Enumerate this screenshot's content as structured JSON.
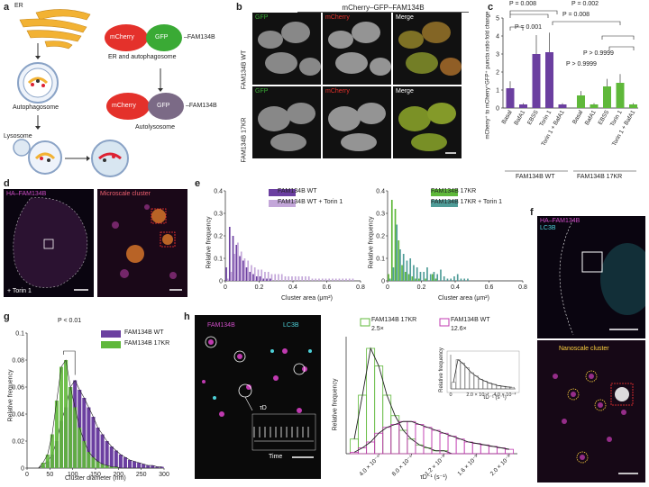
{
  "panels": {
    "a": {
      "label": "a",
      "er": "ER",
      "mcherry": "mCherry",
      "gfp": "GFP",
      "fam": "–FAM134B",
      "er_auto": "ER and autophagosome",
      "autophagosome": "Autophagosome",
      "lysosome": "Lysosome",
      "autolysosome": "Autolysosome",
      "mcherry2": "mCherry",
      "gfp2": "GFP",
      "fam2": "–FAM134B"
    },
    "b": {
      "label": "b",
      "title": "mCherry–GFP–FAM134B",
      "row1": "FAM134B WT",
      "row2": "FAM134B 17KR",
      "col1": "GFP",
      "col2": "mCherry",
      "col3": "Merge",
      "col1b": "GFP",
      "col2b": "mCherry",
      "col3b": "Merge"
    },
    "c": {
      "label": "c",
      "ylabel": "mCherry⁺ to mCherry⁺GFP⁺ puncta ratio fold change",
      "p1": "P = 0.008",
      "p2": "P = 0.002",
      "p3": "P = 0.001",
      "p4": "P = 0.008",
      "p5": "P > 0.9999",
      "p6": "P > 0.9999",
      "group1": "FAM134B WT",
      "group2": "FAM134B 17KR"
    },
    "d": {
      "label": "d",
      "ch": "HA–FAM134B",
      "inset": "Microscale cluster",
      "torin": "+ Torin 1"
    },
    "e": {
      "label": "e",
      "ylabel": "Relative frequency",
      "xlabel1": "Cluster area (μm²)",
      "xlabel2": "Cluster area (μm²)",
      "leg1a": "FAM134B WT",
      "leg1b": "FAM134B WT + Torin 1",
      "leg2a": "FAM134B 17KR",
      "leg2b": "FAM134B 17KR + Torin 1"
    },
    "f": {
      "label": "f",
      "ch1": "HA–FAM134B",
      "ch2": "LC3B",
      "inset": "Nanoscale cluster"
    },
    "g": {
      "label": "g",
      "ylabel": "Relative frequency",
      "xlabel": "Cluster diameter (nm)",
      "p": "P < 0.01",
      "leg1": "FAM134B WT",
      "leg2": "FAM134B 17KR"
    },
    "h": {
      "label": "h",
      "ch1": "FAM134B",
      "ch2": "LC3B",
      "tau": "τD",
      "time": "Time",
      "ylabel": "Relative frequency",
      "xlabel": "τD⁻¹ (s⁻¹)",
      "leg1": "FAM134B 17KR",
      "leg1v": "2.5×",
      "leg2": "FAM134B WT",
      "leg2v": "12.6×",
      "inset_ylabel": "Relative frequency",
      "inset_xlabel": "τD⁻¹ (s⁻¹)"
    }
  },
  "chart_data": [
    {
      "type": "bar",
      "panel": "c",
      "categories": [
        "Basal",
        "BafA1",
        "EBSS",
        "Torin 1",
        "Torin 1 + BafA1",
        "Basal",
        "BafA1",
        "EBSS",
        "Torin 1",
        "Torin 1 + BafA1"
      ],
      "values": [
        1.1,
        0.2,
        3.0,
        3.1,
        0.2,
        0.7,
        0.2,
        1.2,
        1.4,
        0.2
      ],
      "ylim": [
        0,
        5
      ],
      "yticks": [
        0,
        1,
        2,
        3,
        4,
        5
      ],
      "colors": [
        "#6b3fa0",
        "#6b3fa0",
        "#6b3fa0",
        "#6b3fa0",
        "#6b3fa0",
        "#5fb83a",
        "#5fb83a",
        "#5fb83a",
        "#5fb83a",
        "#5fb83a"
      ]
    },
    {
      "type": "bar",
      "panel": "e-left",
      "x": [
        0.01,
        0.03,
        0.05,
        0.07,
        0.09,
        0.11,
        0.13,
        0.15,
        0.17,
        0.19,
        0.21,
        0.23,
        0.25,
        0.27,
        0.29,
        0.31,
        0.33,
        0.35,
        0.37,
        0.39,
        0.41,
        0.43,
        0.45,
        0.47,
        0.49,
        0.51,
        0.53,
        0.55,
        0.57,
        0.59,
        0.61,
        0.63,
        0.65,
        0.67,
        0.69,
        0.71,
        0.73,
        0.75
      ],
      "series": [
        {
          "name": "FAM134B WT",
          "values": [
            0.06,
            0.24,
            0.2,
            0.16,
            0.11,
            0.09,
            0.06,
            0.04,
            0.03,
            0.02,
            0.02,
            0.01,
            0.01,
            0.01,
            0,
            0,
            0,
            0,
            0,
            0,
            0,
            0,
            0,
            0,
            0,
            0,
            0,
            0,
            0,
            0,
            0,
            0,
            0,
            0,
            0,
            0,
            0,
            0
          ]
        },
        {
          "name": "FAM134B WT + Torin 1",
          "values": [
            0.01,
            0.04,
            0.12,
            0.17,
            0.13,
            0.1,
            0.09,
            0.07,
            0.06,
            0.05,
            0.05,
            0.04,
            0.04,
            0.03,
            0.03,
            0.03,
            0.03,
            0.02,
            0.02,
            0.02,
            0.02,
            0.02,
            0.02,
            0.02,
            0.02,
            0.01,
            0.01,
            0.01,
            0.01,
            0.01,
            0.01,
            0.01,
            0.01,
            0.01,
            0.01,
            0.01,
            0.01,
            0.01
          ]
        }
      ],
      "xlim": [
        0,
        0.8
      ],
      "ylim": [
        0,
        0.4
      ],
      "xticks": [
        0,
        0.2,
        0.4,
        0.6,
        0.8
      ],
      "yticks": [
        0,
        0.1,
        0.2,
        0.3,
        0.4
      ]
    },
    {
      "type": "bar",
      "panel": "e-right",
      "x": [
        0.01,
        0.03,
        0.05,
        0.07,
        0.09,
        0.11,
        0.13,
        0.15,
        0.17,
        0.19,
        0.21,
        0.23,
        0.25,
        0.27,
        0.29,
        0.31,
        0.33,
        0.35,
        0.37,
        0.39,
        0.41,
        0.43,
        0.45,
        0.47,
        0.49,
        0.51,
        0.53,
        0.55,
        0.57,
        0.59,
        0.61,
        0.63,
        0.65,
        0.67,
        0.69,
        0.71,
        0.73,
        0.75
      ],
      "series": [
        {
          "name": "FAM134B 17KR",
          "values": [
            0.03,
            0.36,
            0.32,
            0.18,
            0.07,
            0.04,
            0.03,
            0.02,
            0.01,
            0.01,
            0,
            0.01,
            0,
            0.03,
            0.01,
            0,
            0,
            0,
            0,
            0,
            0,
            0,
            0,
            0,
            0,
            0,
            0,
            0,
            0,
            0,
            0,
            0,
            0,
            0,
            0,
            0,
            0,
            0
          ]
        },
        {
          "name": "FAM134B 17KR + Torin 1",
          "values": [
            0.01,
            0.06,
            0.25,
            0.14,
            0.12,
            0.09,
            0.1,
            0.07,
            0.06,
            0.04,
            0.04,
            0.06,
            0.03,
            0.04,
            0.03,
            0.05,
            0.02,
            0.01,
            0.01,
            0.02,
            0.03,
            0.01,
            0.01,
            0.01,
            0,
            0,
            0,
            0,
            0,
            0,
            0,
            0,
            0,
            0,
            0,
            0,
            0,
            0
          ]
        }
      ],
      "xlim": [
        0,
        0.8
      ],
      "ylim": [
        0,
        0.4
      ],
      "xticks": [
        0,
        0.2,
        0.4,
        0.6,
        0.8
      ],
      "yticks": [
        0,
        0.1,
        0.2,
        0.3,
        0.4
      ]
    },
    {
      "type": "bar",
      "panel": "g",
      "x": [
        25,
        35,
        45,
        55,
        65,
        75,
        85,
        95,
        105,
        115,
        125,
        135,
        145,
        155,
        165,
        175,
        185,
        195,
        205,
        215,
        225,
        235,
        245,
        255,
        265,
        275,
        285,
        295
      ],
      "series": [
        {
          "name": "FAM134B WT",
          "values": [
            0,
            0.002,
            0.005,
            0.01,
            0.02,
            0.035,
            0.045,
            0.06,
            0.065,
            0.058,
            0.052,
            0.045,
            0.038,
            0.03,
            0.025,
            0.02,
            0.016,
            0.013,
            0.01,
            0.008,
            0.006,
            0.005,
            0.004,
            0.003,
            0.002,
            0.002,
            0.001,
            0.001
          ]
        },
        {
          "name": "FAM134B 17KR",
          "values": [
            0,
            0.004,
            0.01,
            0.025,
            0.05,
            0.075,
            0.08,
            0.06,
            0.045,
            0.03,
            0.02,
            0.012,
            0.008,
            0.005,
            0.003,
            0.002,
            0.001,
            0.001,
            0,
            0,
            0,
            0,
            0,
            0,
            0,
            0,
            0,
            0
          ]
        }
      ],
      "xlim": [
        0,
        300
      ],
      "ylim": [
        0,
        0.1
      ],
      "xticks": [
        0,
        50,
        100,
        150,
        200,
        250,
        300
      ],
      "yticks": [
        0,
        0.02,
        0.04,
        0.06,
        0.08,
        0.1
      ]
    },
    {
      "type": "bar",
      "panel": "h",
      "x": [
        0.0001,
        0.0002,
        0.0003,
        0.0004,
        0.0005,
        0.0006,
        0.0007,
        0.0008,
        0.0009,
        0.001,
        0.0011,
        0.0012,
        0.0013,
        0.0014,
        0.0015,
        0.0016,
        0.0017,
        0.0018,
        0.0019,
        0.002
      ],
      "series": [
        {
          "name": "FAM134B 17KR",
          "values": [
            0.05,
            0.2,
            0.36,
            0.3,
            0.2,
            0.13,
            0.08,
            0.05,
            0.03,
            0.02,
            0.01,
            0.01,
            0,
            0,
            0,
            0,
            0,
            0,
            0,
            0
          ]
        },
        {
          "name": "FAM134B WT",
          "values": [
            0.005,
            0.02,
            0.04,
            0.07,
            0.09,
            0.1,
            0.11,
            0.11,
            0.1,
            0.09,
            0.08,
            0.07,
            0.06,
            0.05,
            0.04,
            0.035,
            0.03,
            0.025,
            0.02,
            0.015
          ]
        }
      ],
      "xticks": [
        "4.0 × 10⁻⁴",
        "8.0 × 10⁻⁴",
        "1.2 × 10⁻³",
        "1.6 × 10⁻³",
        "2.0 × 10⁻³"
      ],
      "inset_xticks": [
        "0",
        "2.0 × 10⁻⁴",
        "4.0 × 10⁻⁴"
      ]
    }
  ]
}
